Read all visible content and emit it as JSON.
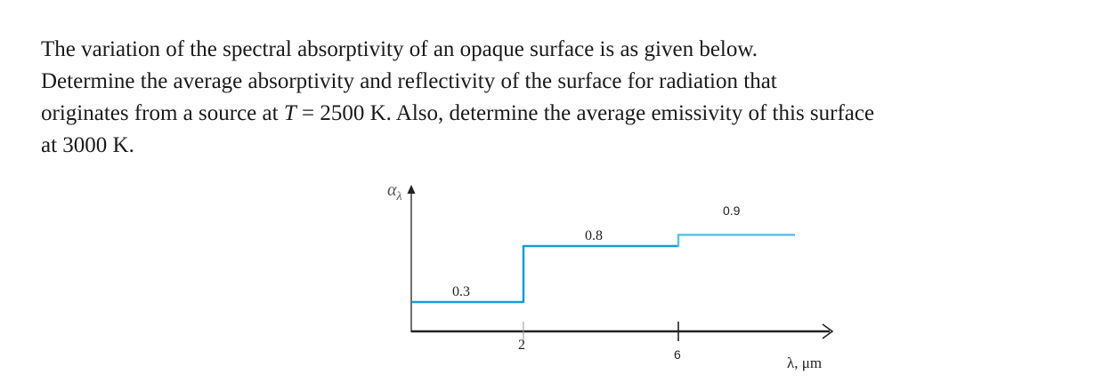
{
  "problem": {
    "line1": "The variation of the spectral absorptivity of an opaque surface is as given below.",
    "line2": "Determine the average absorptivity and reflectivity of the surface for radiation that",
    "line3_before_T": "originates from a source at ",
    "line3_T": "T",
    "line3_after_T": " = 2500 K. Also, determine the average emissivity of this surface",
    "line4": "at 3000 K."
  },
  "chart_data": {
    "type": "line",
    "step": true,
    "ylabel": "α",
    "ylabel_subscript": "λ",
    "xlabel": "λ, μm",
    "x_ticks": [
      "2",
      "6"
    ],
    "series": [
      {
        "segments": [
          {
            "x_start": 0,
            "x_end": 2,
            "y": 0.3,
            "label": "0.3"
          },
          {
            "x_start": 2,
            "x_end": 6,
            "y": 0.8,
            "label": "0.8"
          },
          {
            "x_start": 6,
            "x_end": 9,
            "y": 0.9,
            "label": "0.9"
          }
        ],
        "color": "#1a9ad6",
        "color_last": "#5fc0ea"
      }
    ]
  }
}
